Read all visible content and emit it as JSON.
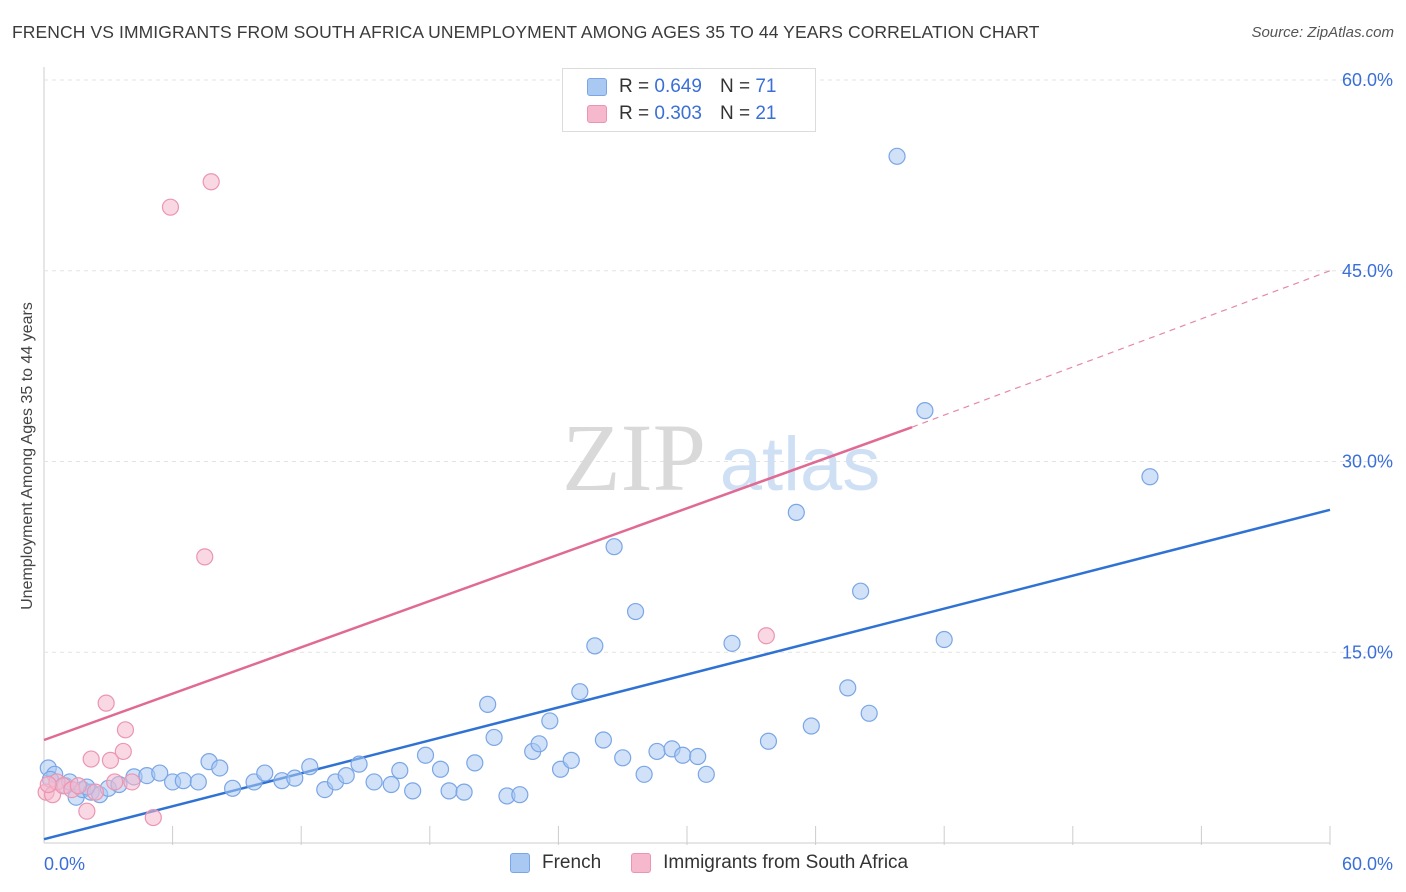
{
  "title": "FRENCH VS IMMIGRANTS FROM SOUTH AFRICA UNEMPLOYMENT AMONG AGES 35 TO 44 YEARS CORRELATION CHART",
  "source": "Source: ZipAtlas.com",
  "watermark": {
    "zip": "ZIP",
    "atlas": "atlas"
  },
  "legend": {
    "rows": [
      {
        "r_label": "R =",
        "r_value": "0.649",
        "n_label": "N =",
        "n_value": "71"
      },
      {
        "r_label": "R =",
        "r_value": "0.303",
        "n_label": "N =",
        "n_value": "21"
      }
    ]
  },
  "bottom_legend": {
    "french": "French",
    "sa": "Immigrants from South Africa"
  },
  "colors": {
    "french_fill": "#a9c9f3",
    "french_stroke": "#7aa6e6",
    "french_line": "#2f72d3",
    "sa_fill": "#f5b8cc",
    "sa_stroke": "#eb95b1",
    "sa_line": "#e06a93",
    "axis_label": "#3a6fd8",
    "grid": "#e3e3e3"
  },
  "chart_data": {
    "type": "scatter",
    "title": "FRENCH VS IMMIGRANTS FROM SOUTH AFRICA UNEMPLOYMENT AMONG AGES 35 TO 44 YEARS CORRELATION CHART",
    "xlabel": "",
    "ylabel": "Unemployment Among Ages 35 to 44 years",
    "xlim": [
      0,
      60
    ],
    "ylim": [
      0,
      60
    ],
    "x_tick_labels": [
      "0.0%",
      "60.0%"
    ],
    "y_ticks": [
      15,
      30,
      45,
      60
    ],
    "y_tick_labels": [
      "15.0%",
      "30.0%",
      "45.0%",
      "60.0%"
    ],
    "series": [
      {
        "name": "French",
        "r": 0.649,
        "n": 71,
        "trend": {
          "x": [
            0,
            60
          ],
          "y": [
            0.3,
            26.2
          ]
        },
        "points": [
          [
            0.2,
            5.9
          ],
          [
            0.5,
            5.4
          ],
          [
            1.0,
            4.5
          ],
          [
            1.2,
            4.8
          ],
          [
            1.5,
            3.6
          ],
          [
            1.8,
            4.2
          ],
          [
            2.2,
            4.0
          ],
          [
            2.6,
            3.8
          ],
          [
            3.0,
            4.3
          ],
          [
            3.5,
            4.6
          ],
          [
            4.2,
            5.2
          ],
          [
            4.8,
            5.3
          ],
          [
            5.4,
            5.5
          ],
          [
            6.0,
            4.8
          ],
          [
            6.5,
            4.9
          ],
          [
            7.2,
            4.8
          ],
          [
            7.7,
            6.4
          ],
          [
            8.2,
            5.9
          ],
          [
            8.8,
            4.3
          ],
          [
            9.8,
            4.8
          ],
          [
            10.3,
            5.5
          ],
          [
            11.1,
            4.9
          ],
          [
            11.7,
            5.1
          ],
          [
            12.4,
            6.0
          ],
          [
            13.1,
            4.2
          ],
          [
            13.6,
            4.8
          ],
          [
            14.1,
            5.3
          ],
          [
            14.7,
            6.2
          ],
          [
            15.4,
            4.8
          ],
          [
            16.2,
            4.6
          ],
          [
            16.6,
            5.7
          ],
          [
            17.2,
            4.1
          ],
          [
            17.8,
            6.9
          ],
          [
            18.5,
            5.8
          ],
          [
            18.9,
            4.1
          ],
          [
            19.6,
            4.0
          ],
          [
            20.1,
            6.3
          ],
          [
            20.7,
            10.9
          ],
          [
            21.0,
            8.3
          ],
          [
            21.6,
            3.7
          ],
          [
            22.2,
            3.8
          ],
          [
            22.8,
            7.2
          ],
          [
            23.1,
            7.8
          ],
          [
            23.6,
            9.6
          ],
          [
            24.1,
            5.8
          ],
          [
            24.6,
            6.5
          ],
          [
            25.0,
            11.9
          ],
          [
            25.7,
            15.5
          ],
          [
            26.1,
            8.1
          ],
          [
            26.6,
            23.3
          ],
          [
            27.0,
            6.7
          ],
          [
            27.6,
            18.2
          ],
          [
            28.0,
            5.4
          ],
          [
            28.6,
            7.2
          ],
          [
            29.3,
            7.4
          ],
          [
            29.8,
            6.9
          ],
          [
            30.5,
            6.8
          ],
          [
            30.9,
            5.4
          ],
          [
            32.1,
            15.7
          ],
          [
            33.8,
            8.0
          ],
          [
            35.1,
            26.0
          ],
          [
            35.8,
            9.2
          ],
          [
            37.5,
            12.2
          ],
          [
            38.1,
            19.8
          ],
          [
            38.5,
            10.2
          ],
          [
            39.8,
            54.0
          ],
          [
            41.1,
            34.0
          ],
          [
            42.0,
            16.0
          ],
          [
            51.6,
            28.8
          ],
          [
            0.3,
            5.0
          ],
          [
            2.0,
            4.4
          ]
        ]
      },
      {
        "name": "Immigrants from South Africa",
        "r": 0.303,
        "n": 21,
        "trend": {
          "x": [
            0,
            40.5
          ],
          "y": [
            8.1,
            32.7
          ]
        },
        "trend_dashed": {
          "x": [
            40.5,
            60
          ],
          "y": [
            32.7,
            45.0
          ]
        },
        "points": [
          [
            0.1,
            4.0
          ],
          [
            0.4,
            3.8
          ],
          [
            0.6,
            4.8
          ],
          [
            0.9,
            4.5
          ],
          [
            1.3,
            4.2
          ],
          [
            1.6,
            4.5
          ],
          [
            2.0,
            2.5
          ],
          [
            2.4,
            4.0
          ],
          [
            2.9,
            11.0
          ],
          [
            3.1,
            6.5
          ],
          [
            3.3,
            4.8
          ],
          [
            3.7,
            7.2
          ],
          [
            3.8,
            8.9
          ],
          [
            4.1,
            4.8
          ],
          [
            5.1,
            2.0
          ],
          [
            5.9,
            50.0
          ],
          [
            7.5,
            22.5
          ],
          [
            7.8,
            52.0
          ],
          [
            2.2,
            6.6
          ],
          [
            33.7,
            16.3
          ],
          [
            0.2,
            4.6
          ]
        ]
      }
    ]
  }
}
